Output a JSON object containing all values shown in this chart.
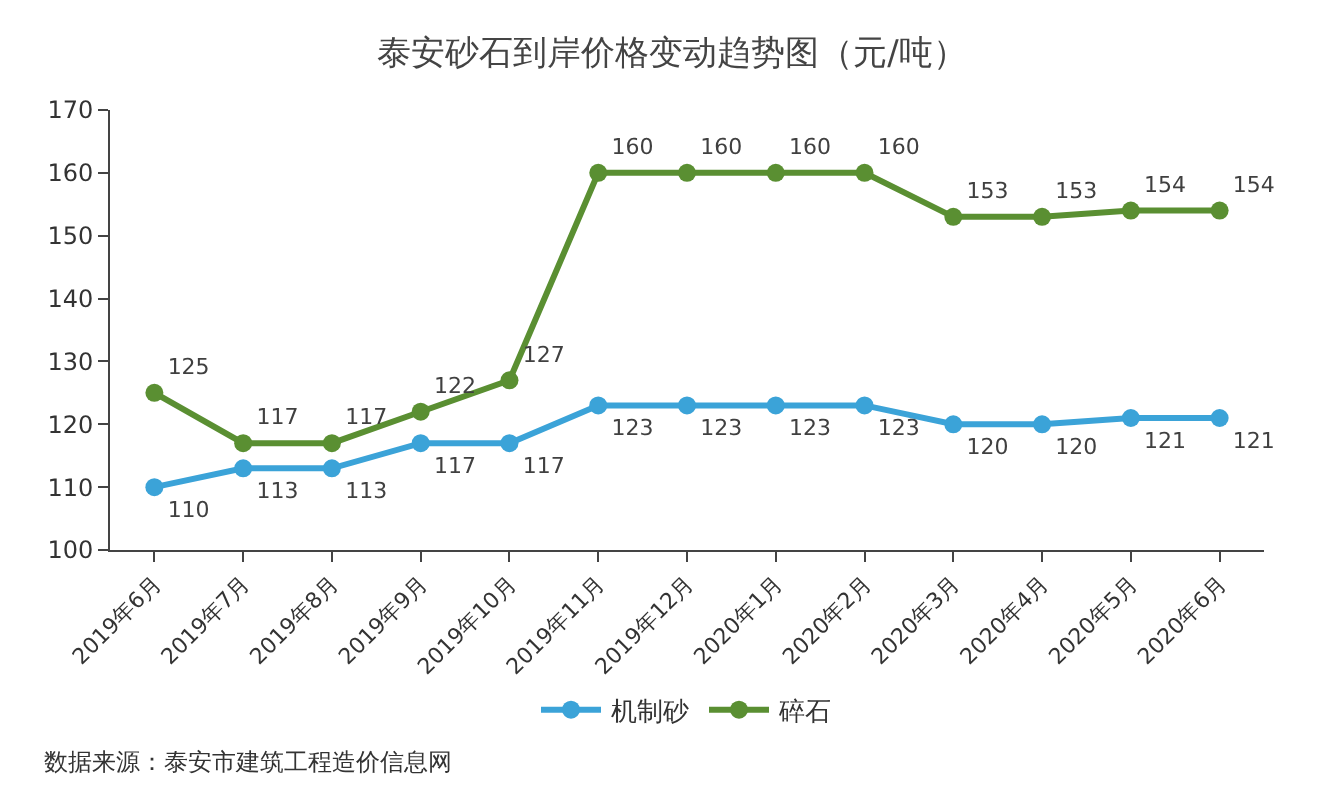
{
  "chart_data": {
    "type": "line",
    "title": "泰安砂石到岸价格变动趋势图（元/吨）",
    "categories": [
      "2019年6月",
      "2019年7月",
      "2019年8月",
      "2019年9月",
      "2019年10月",
      "2019年11月",
      "2019年12月",
      "2020年1月",
      "2020年2月",
      "2020年3月",
      "2020年4月",
      "2020年5月",
      "2020年6月"
    ],
    "series": [
      {
        "name": "机制砂",
        "color": "#3ba3d8",
        "values": [
          110,
          113,
          113,
          117,
          117,
          123,
          123,
          123,
          123,
          120,
          120,
          121,
          121
        ]
      },
      {
        "name": "碎石",
        "color": "#5a8f32",
        "values": [
          125,
          117,
          117,
          122,
          127,
          160,
          160,
          160,
          160,
          153,
          153,
          154,
          154
        ]
      }
    ],
    "ylim": [
      100,
      170
    ],
    "yticks": [
      100,
      110,
      120,
      130,
      140,
      150,
      160,
      170
    ],
    "data_labels": true,
    "legend": "bottom",
    "marker": "circle",
    "line_style": "solid",
    "annotations": [
      "数据来源：泰安市建筑工程造价信息网"
    ]
  }
}
